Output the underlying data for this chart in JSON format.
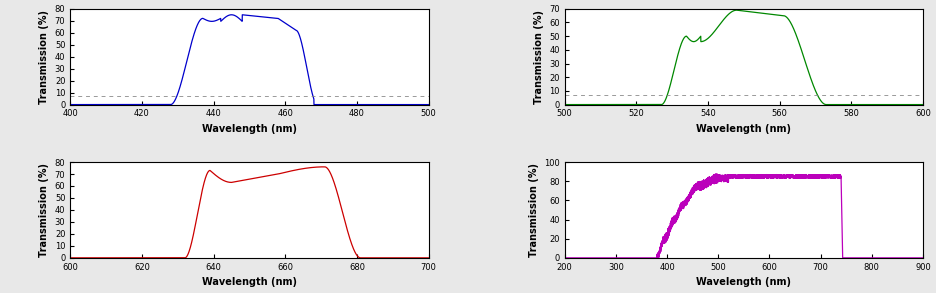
{
  "subplots": [
    {
      "xlim": [
        400,
        500
      ],
      "ylim": [
        0,
        80
      ],
      "xticks": [
        400,
        420,
        440,
        460,
        480,
        500
      ],
      "yticks": [
        0,
        10,
        20,
        30,
        40,
        50,
        60,
        70,
        80
      ],
      "xlabel": "Wavelength (nm)",
      "ylabel": "Transmission (%)",
      "color": "#0000CC",
      "hline_y": 7
    },
    {
      "xlim": [
        500,
        600
      ],
      "ylim": [
        0,
        70
      ],
      "xticks": [
        500,
        520,
        540,
        560,
        580,
        600
      ],
      "yticks": [
        0,
        10,
        20,
        30,
        40,
        50,
        60,
        70
      ],
      "xlabel": "Wavelength (nm)",
      "ylabel": "Transmission (%)",
      "color": "#008800",
      "hline_y": 7
    },
    {
      "xlim": [
        600,
        700
      ],
      "ylim": [
        0,
        80
      ],
      "xticks": [
        600,
        620,
        640,
        660,
        680,
        700
      ],
      "yticks": [
        0,
        10,
        20,
        30,
        40,
        50,
        60,
        70,
        80
      ],
      "xlabel": "Wavelength (nm)",
      "ylabel": "Transmission (%)",
      "color": "#CC0000",
      "hline_y": null
    },
    {
      "xlim": [
        200,
        900
      ],
      "ylim": [
        0,
        100
      ],
      "xticks": [
        200,
        300,
        400,
        500,
        600,
        700,
        800,
        900
      ],
      "yticks": [
        0,
        20,
        40,
        60,
        80,
        100
      ],
      "xlabel": "Wavelength (nm)",
      "ylabel": "Transmission (%)",
      "color": "#BB00BB",
      "hline_y": null
    }
  ],
  "fig_facecolor": "#e8e8e8",
  "axes_facecolor": "#ffffff"
}
